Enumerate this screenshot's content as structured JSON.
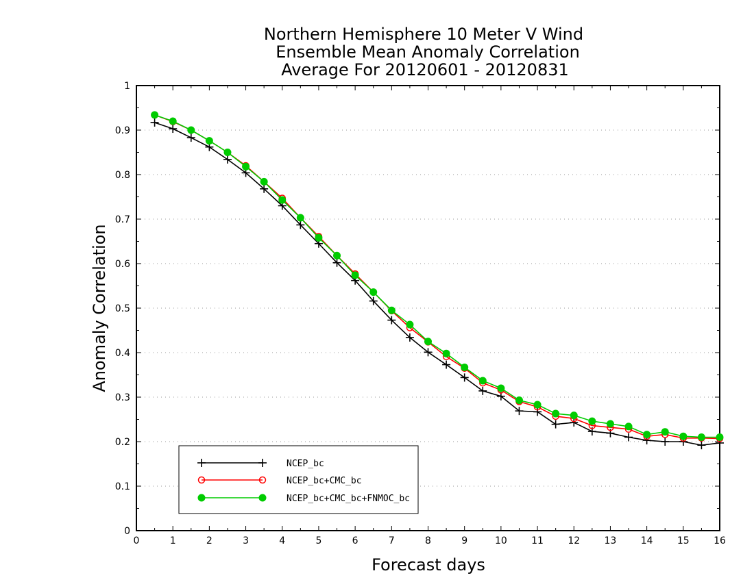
{
  "chart_data": {
    "type": "line",
    "title": [
      "Northern Hemisphere 10 Meter V Wind",
      "Ensemble Mean Anomaly Correlation",
      "Average For 20120601 - 20120831"
    ],
    "xlabel": "Forecast days",
    "ylabel": "Anomaly Correlation",
    "xlim": [
      0,
      16
    ],
    "ylim": [
      0,
      1
    ],
    "xticks": [
      "0",
      "1",
      "2",
      "3",
      "4",
      "5",
      "6",
      "7",
      "8",
      "9",
      "10",
      "11",
      "12",
      "13",
      "14",
      "15",
      "16"
    ],
    "yticks": [
      "0",
      "0.1",
      "0.2",
      "0.3",
      "0.4",
      "0.5",
      "0.6",
      "0.7",
      "0.8",
      "0.9",
      "1"
    ],
    "grid": true,
    "legend_position": "bottom-left",
    "x": [
      0.5,
      1,
      1.5,
      2,
      2.5,
      3,
      3.5,
      4,
      4.5,
      5,
      5.5,
      6,
      6.5,
      7,
      7.5,
      8,
      8.5,
      9,
      9.5,
      10,
      10.5,
      11,
      11.5,
      12,
      12.5,
      13,
      13.5,
      14,
      14.5,
      15,
      15.5,
      16
    ],
    "series": [
      {
        "name": "NCEP_bc",
        "color": "#000000",
        "marker": "plus",
        "values": [
          0.917,
          0.903,
          0.883,
          0.862,
          0.834,
          0.804,
          0.768,
          0.73,
          0.687,
          0.645,
          0.602,
          0.562,
          0.516,
          0.473,
          0.434,
          0.401,
          0.373,
          0.344,
          0.314,
          0.302,
          0.269,
          0.267,
          0.239,
          0.243,
          0.223,
          0.219,
          0.21,
          0.203,
          0.2,
          0.2,
          0.192,
          0.197
        ]
      },
      {
        "name": "NCEP_bc+CMC_bc",
        "color": "#ff0000",
        "marker": "open-circle",
        "values": [
          0.934,
          0.919,
          0.9,
          0.876,
          0.85,
          0.82,
          0.784,
          0.747,
          0.703,
          0.661,
          0.618,
          0.577,
          0.536,
          0.494,
          0.456,
          0.424,
          0.391,
          0.365,
          0.332,
          0.316,
          0.29,
          0.278,
          0.257,
          0.252,
          0.236,
          0.232,
          0.228,
          0.212,
          0.216,
          0.208,
          0.208,
          0.207
        ]
      },
      {
        "name": "NCEP_bc+CMC_bc+FNMOC_bc",
        "color": "#00cc00",
        "marker": "filled-circle",
        "values": [
          0.934,
          0.92,
          0.9,
          0.876,
          0.85,
          0.818,
          0.784,
          0.743,
          0.703,
          0.658,
          0.618,
          0.574,
          0.536,
          0.495,
          0.463,
          0.425,
          0.398,
          0.367,
          0.337,
          0.32,
          0.293,
          0.283,
          0.263,
          0.259,
          0.246,
          0.24,
          0.234,
          0.216,
          0.222,
          0.212,
          0.21,
          0.21
        ]
      }
    ]
  }
}
